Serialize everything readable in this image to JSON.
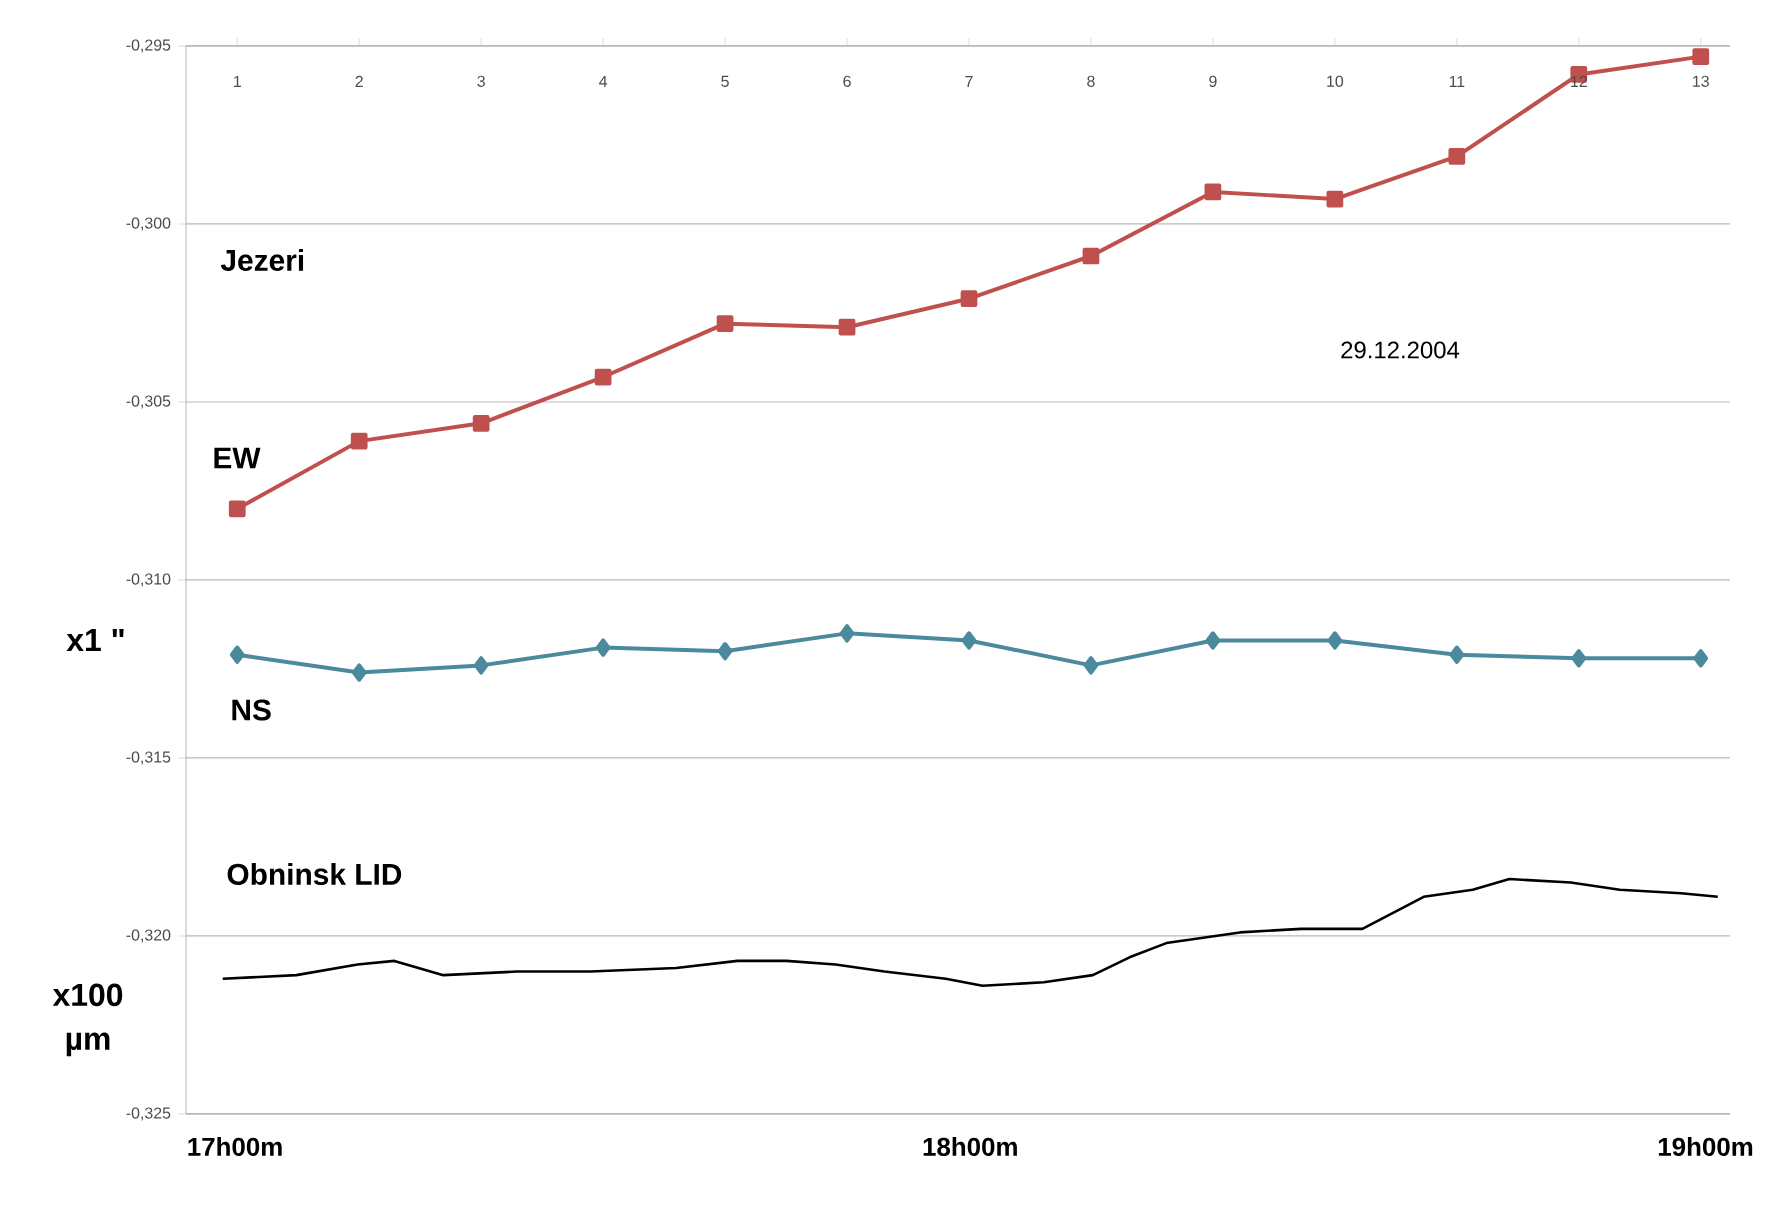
{
  "chart_data": {
    "type": "line",
    "annotations": [
      "Jezeri",
      "29.12.2004",
      "x1 \"",
      "x100 µm"
    ],
    "xlim": [
      "2004-12-29T16:56",
      "2004-12-29T19:02"
    ],
    "xticks": [
      {
        "value": "2004-12-29T17:00",
        "label": "17h00m"
      },
      {
        "value": "2004-12-29T18:00",
        "label": "18h00m"
      },
      {
        "value": "2004-12-29T19:00",
        "label": "19h00m"
      }
    ],
    "x2lim": [
      0.58,
      13.24
    ],
    "x2ticks": [
      1,
      2,
      3,
      4,
      5,
      6,
      7,
      8,
      9,
      10,
      11,
      12,
      13
    ],
    "ylim": [
      -0.325,
      -0.295
    ],
    "yticks": [
      {
        "value": -0.325,
        "label": "-0,325"
      },
      {
        "value": -0.32,
        "label": "-0,320"
      },
      {
        "value": -0.315,
        "label": "-0,315"
      },
      {
        "value": -0.31,
        "label": "-0,310"
      },
      {
        "value": -0.305,
        "label": "-0,305"
      },
      {
        "value": -0.3,
        "label": "-0,300"
      },
      {
        "value": -0.295,
        "label": "-0,295"
      }
    ],
    "grid": "y",
    "series": [
      {
        "name": "EW",
        "color": "#c0504d",
        "marker": "square",
        "axis": "x2",
        "x": [
          1,
          2,
          3,
          4,
          5,
          6,
          7,
          8,
          9,
          10,
          11,
          12,
          13
        ],
        "values": [
          -0.308,
          -0.3061,
          -0.3056,
          -0.3043,
          -0.3028,
          -0.3029,
          -0.3021,
          -0.3009,
          -0.2991,
          -0.2993,
          -0.2981,
          -0.2958,
          -0.2953
        ]
      },
      {
        "name": "NS",
        "color": "#4a8a9c",
        "marker": "diamond",
        "axis": "x2",
        "x": [
          1,
          2,
          3,
          4,
          5,
          6,
          7,
          8,
          9,
          10,
          11,
          12,
          13
        ],
        "values": [
          -0.3121,
          -0.3126,
          -0.3124,
          -0.3119,
          -0.312,
          -0.3115,
          -0.3117,
          -0.3124,
          -0.3117,
          -0.3117,
          -0.3121,
          -0.3122,
          -0.3122
        ]
      },
      {
        "name": "Obninsk LID",
        "color": "#000000",
        "marker": "none",
        "x": [
          "2004-12-29T16:59",
          "2004-12-29T17:05",
          "2004-12-29T17:10",
          "2004-12-29T17:13",
          "2004-12-29T17:17",
          "2004-12-29T17:23",
          "2004-12-29T17:29",
          "2004-12-29T17:36",
          "2004-12-29T17:41",
          "2004-12-29T17:45",
          "2004-12-29T17:49",
          "2004-12-29T17:53",
          "2004-12-29T17:58",
          "2004-12-29T18:01",
          "2004-12-29T18:06",
          "2004-12-29T18:10",
          "2004-12-29T18:13",
          "2004-12-29T18:16",
          "2004-12-29T18:22",
          "2004-12-29T18:27",
          "2004-12-29T18:32",
          "2004-12-29T18:37",
          "2004-12-29T18:41",
          "2004-12-29T18:44",
          "2004-12-29T18:49",
          "2004-12-29T18:53",
          "2004-12-29T18:58",
          "2004-12-29T19:01"
        ],
        "values": [
          -0.3212,
          -0.3211,
          -0.3208,
          -0.3207,
          -0.3211,
          -0.321,
          -0.321,
          -0.3209,
          -0.3207,
          -0.3207,
          -0.3208,
          -0.321,
          -0.3212,
          -0.3214,
          -0.3213,
          -0.3211,
          -0.3206,
          -0.3202,
          -0.3199,
          -0.3198,
          -0.3198,
          -0.3189,
          -0.3187,
          -0.3184,
          -0.3185,
          -0.3187,
          -0.3188,
          -0.3189
        ]
      }
    ]
  }
}
